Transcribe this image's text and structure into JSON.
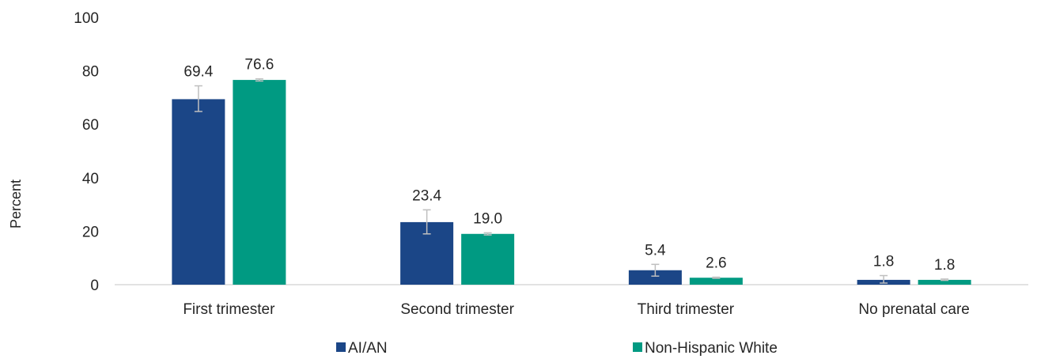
{
  "chart_data": {
    "type": "bar",
    "ylabel": "Percent",
    "ylim": [
      0,
      100
    ],
    "yticks": [
      0,
      20,
      40,
      60,
      80,
      100
    ],
    "grid": false,
    "legend_position": "bottom",
    "categories": [
      "First trimester",
      "Second trimester",
      "Third trimester",
      "No prenatal care"
    ],
    "series": [
      {
        "name": "AI/AN",
        "color": "#1b4687",
        "values": [
          69.4,
          23.4,
          5.4,
          1.8
        ],
        "labels": [
          "69.4",
          "23.4",
          "5.4",
          "1.8"
        ],
        "error_low": [
          64.8,
          19.0,
          3.2,
          0.6
        ],
        "error_high": [
          74.4,
          28.0,
          7.6,
          3.4
        ]
      },
      {
        "name": "Non-Hispanic White",
        "color": "#009a82",
        "values": [
          76.6,
          19.0,
          2.6,
          1.8
        ],
        "labels": [
          "76.6",
          "19.0",
          "2.6",
          "1.8"
        ],
        "error_low": [
          76.2,
          18.6,
          2.4,
          1.6
        ],
        "error_high": [
          77.0,
          19.4,
          2.8,
          2.1
        ]
      }
    ]
  }
}
